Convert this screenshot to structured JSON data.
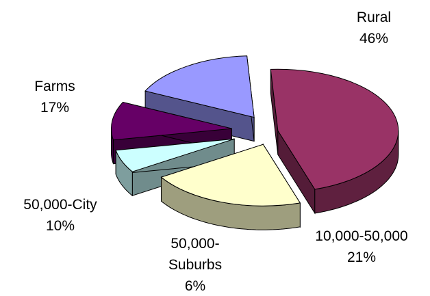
{
  "chart_data": {
    "type": "pie",
    "style": "3d-exploded",
    "slices": [
      {
        "label_lines": [
          "Rural",
          "46%"
        ],
        "value": 46,
        "color": "#993366"
      },
      {
        "label_lines": [
          "10,000-50,000",
          "21%"
        ],
        "value": 21,
        "color": "#FFFFCC"
      },
      {
        "label_lines": [
          "50,000-",
          "Suburbs",
          "6%"
        ],
        "value": 6,
        "color": "#CCFFFF"
      },
      {
        "label_lines": [
          "50,000-City",
          "10%"
        ],
        "value": 10,
        "color": "#660066"
      },
      {
        "label_lines": [
          "Farms",
          "17%"
        ],
        "value": 17,
        "color": "#9999FF"
      }
    ]
  }
}
